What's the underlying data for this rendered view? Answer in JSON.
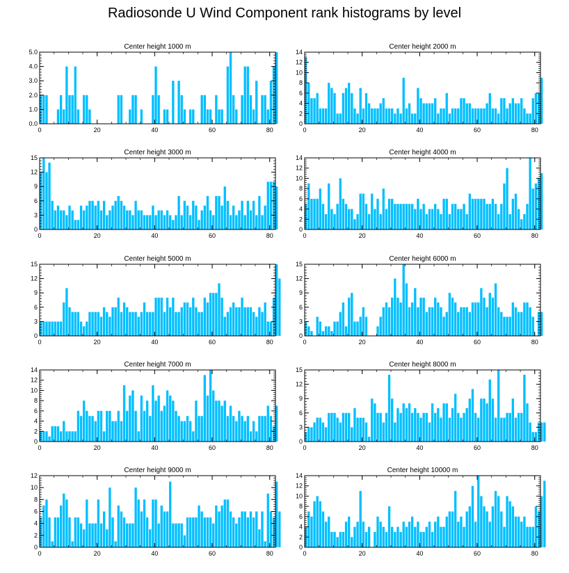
{
  "title": "Radiosonde U Wind Component rank histograms by level",
  "colors": {
    "bar": "#00bfff",
    "bar_edge": "#ffffff",
    "axis": "#000000"
  },
  "chart_data": [
    {
      "type": "bar",
      "title": "Center height 1000 m",
      "xlim": [
        0,
        82
      ],
      "ylim": [
        0,
        5
      ],
      "yticks": [
        0,
        1,
        2,
        3,
        4,
        5
      ],
      "ytick_labels": [
        "0.0",
        "1.0",
        "2.0",
        "3.0",
        "4.0",
        "5.0"
      ],
      "xticks": [
        0,
        20,
        40,
        60,
        80
      ],
      "xtick_labels": [
        "0",
        "20",
        "40",
        "60",
        "80"
      ],
      "values": [
        2,
        2,
        2,
        0,
        0,
        0,
        1,
        2,
        1,
        4,
        2,
        2,
        4,
        1,
        0,
        2,
        2,
        1,
        0,
        0,
        0,
        0,
        0,
        0,
        0,
        0,
        0,
        2,
        2,
        0,
        0,
        1,
        2,
        2,
        0,
        1,
        0,
        0,
        0,
        2,
        4,
        2,
        0,
        1,
        1,
        0,
        3,
        0,
        3,
        2,
        1,
        0,
        1,
        1,
        0,
        0,
        2,
        2,
        1,
        1,
        0,
        2,
        1,
        1,
        0,
        4,
        5,
        2,
        1,
        0,
        2,
        4,
        4,
        2,
        1,
        3,
        0,
        2,
        2,
        1,
        3,
        4,
        5
      ]
    },
    {
      "type": "bar",
      "title": "Center height 2000 m",
      "xlim": [
        0,
        82
      ],
      "ylim": [
        0,
        14
      ],
      "yticks": [
        0,
        2,
        4,
        6,
        8,
        10,
        12,
        14
      ],
      "ytick_labels": [
        "0",
        "2",
        "4",
        "6",
        "8",
        "10",
        "12",
        "14"
      ],
      "xticks": [
        0,
        20,
        40,
        60,
        80
      ],
      "xtick_labels": [
        "0",
        "20",
        "40",
        "60",
        "80"
      ],
      "values": [
        13,
        8,
        5,
        5,
        6,
        3,
        3,
        3,
        8,
        7,
        6,
        2,
        2,
        6,
        7,
        8,
        6,
        3,
        2,
        7,
        3,
        6,
        4,
        3,
        3,
        3,
        4,
        5,
        3,
        3,
        3,
        2,
        3,
        2,
        9,
        3,
        4,
        2,
        2,
        7,
        5,
        4,
        4,
        4,
        4,
        5,
        2,
        3,
        3,
        6,
        2,
        3,
        3,
        3,
        5,
        5,
        4,
        4,
        3,
        3,
        3,
        3,
        3,
        4,
        6,
        3,
        3,
        2,
        5,
        5,
        3,
        4,
        5,
        4,
        4,
        5,
        3,
        2,
        2,
        5,
        6,
        6,
        9
      ]
    },
    {
      "type": "bar",
      "title": "Center height 3000 m",
      "xlim": [
        0,
        82
      ],
      "ylim": [
        0,
        15
      ],
      "yticks": [
        0,
        3,
        6,
        9,
        12,
        15
      ],
      "ytick_labels": [
        "0",
        "3",
        "6",
        "9",
        "12",
        "15"
      ],
      "xticks": [
        0,
        20,
        40,
        60,
        80
      ],
      "xtick_labels": [
        "0",
        "20",
        "40",
        "60",
        "80"
      ],
      "values": [
        12,
        15,
        12,
        14,
        6,
        4,
        5,
        4,
        4,
        3,
        5,
        4,
        2,
        2,
        5,
        4,
        5,
        6,
        6,
        5,
        6,
        4,
        6,
        3,
        4,
        5,
        6,
        7,
        6,
        5,
        4,
        4,
        3,
        6,
        4,
        4,
        3,
        3,
        3,
        5,
        3,
        4,
        4,
        3,
        4,
        3,
        2,
        3,
        7,
        3,
        6,
        5,
        3,
        6,
        5,
        2,
        4,
        5,
        7,
        4,
        3,
        7,
        7,
        5,
        9,
        6,
        3,
        5,
        3,
        4,
        6,
        3,
        6,
        4,
        6,
        3,
        7,
        3,
        5,
        10,
        10,
        10,
        9
      ]
    },
    {
      "type": "bar",
      "title": "Center height 4000 m",
      "xlim": [
        0,
        82
      ],
      "ylim": [
        0,
        14
      ],
      "yticks": [
        0,
        2,
        4,
        6,
        8,
        10,
        12,
        14
      ],
      "ytick_labels": [
        "0",
        "2",
        "4",
        "6",
        "8",
        "10",
        "12",
        "14"
      ],
      "xticks": [
        0,
        20,
        40,
        60,
        80
      ],
      "xtick_labels": [
        "0",
        "20",
        "40",
        "60",
        "80"
      ],
      "values": [
        5,
        9,
        6,
        6,
        6,
        8,
        5,
        3,
        9,
        4,
        3,
        5,
        10,
        6,
        5,
        4,
        4,
        2,
        3,
        7,
        7,
        5,
        3,
        7,
        4,
        6,
        3,
        8,
        4,
        6,
        6,
        5,
        5,
        5,
        5,
        5,
        5,
        5,
        4,
        6,
        4,
        5,
        3,
        4,
        4,
        5,
        4,
        3,
        6,
        6,
        3,
        5,
        5,
        4,
        4,
        5,
        3,
        7,
        6,
        6,
        6,
        6,
        6,
        5,
        5,
        6,
        5,
        3,
        5,
        9,
        12,
        3,
        6,
        7,
        4,
        2,
        3,
        5,
        14,
        8,
        9,
        10,
        11
      ]
    },
    {
      "type": "bar",
      "title": "Center height 5000 m",
      "xlim": [
        0,
        82
      ],
      "ylim": [
        0,
        15
      ],
      "yticks": [
        0,
        3,
        6,
        9,
        12,
        15
      ],
      "ytick_labels": [
        "0",
        "3",
        "6",
        "9",
        "12",
        "15"
      ],
      "xticks": [
        0,
        20,
        40,
        60,
        80
      ],
      "xtick_labels": [
        "0",
        "20",
        "40",
        "60",
        "80"
      ],
      "values": [
        3,
        3,
        3,
        3,
        3,
        3,
        3,
        3,
        7,
        10,
        6,
        5,
        5,
        5,
        3,
        2,
        3,
        5,
        5,
        5,
        5,
        4,
        6,
        5,
        4,
        6,
        6,
        8,
        5,
        7,
        6,
        5,
        5,
        5,
        4,
        5,
        7,
        5,
        5,
        5,
        8,
        8,
        8,
        5,
        8,
        6,
        8,
        5,
        5,
        6,
        7,
        7,
        6,
        8,
        6,
        5,
        5,
        8,
        7,
        9,
        9,
        9,
        11,
        8,
        4,
        5,
        6,
        7,
        6,
        6,
        8,
        6,
        6,
        6,
        5,
        4,
        6,
        5,
        7,
        3,
        3,
        8,
        15,
        12
      ]
    },
    {
      "type": "bar",
      "title": "Center height 6000 m",
      "xlim": [
        0,
        82
      ],
      "ylim": [
        0,
        15
      ],
      "yticks": [
        0,
        3,
        6,
        9,
        12,
        15
      ],
      "ytick_labels": [
        "0",
        "3",
        "6",
        "9",
        "12",
        "15"
      ],
      "xticks": [
        0,
        20,
        40,
        60,
        80
      ],
      "xtick_labels": [
        "0",
        "20",
        "40",
        "60",
        "80"
      ],
      "values": [
        3,
        2,
        1,
        0,
        4,
        3,
        1,
        2,
        2,
        1,
        3,
        3,
        5,
        7,
        2,
        8,
        9,
        3,
        3,
        4,
        6,
        4,
        0,
        0,
        0,
        2,
        4,
        6,
        7,
        6,
        8,
        12,
        8,
        7,
        15,
        11,
        6,
        7,
        10,
        6,
        8,
        8,
        5,
        6,
        6,
        8,
        7,
        6,
        4,
        5,
        9,
        8,
        7,
        5,
        6,
        6,
        6,
        5,
        7,
        7,
        7,
        10,
        8,
        6,
        9,
        8,
        11,
        6,
        5,
        4,
        4,
        4,
        7,
        6,
        5,
        5,
        7,
        7,
        6,
        4,
        0,
        5,
        5
      ]
    },
    {
      "type": "bar",
      "title": "Center height 7000 m",
      "xlim": [
        0,
        82
      ],
      "ylim": [
        0,
        14
      ],
      "yticks": [
        0,
        2,
        4,
        6,
        8,
        10,
        12,
        14
      ],
      "ytick_labels": [
        "0",
        "2",
        "4",
        "6",
        "8",
        "10",
        "12",
        "14"
      ],
      "xticks": [
        0,
        20,
        40,
        60,
        80
      ],
      "xtick_labels": [
        "0",
        "20",
        "40",
        "60",
        "80"
      ],
      "values": [
        2,
        2,
        2,
        1,
        3,
        3,
        3,
        2,
        4,
        2,
        2,
        2,
        2,
        6,
        5,
        8,
        6,
        5,
        5,
        4,
        6,
        6,
        2,
        6,
        6,
        4,
        4,
        6,
        4,
        11,
        6,
        9,
        10,
        6,
        2,
        9,
        6,
        8,
        5,
        11,
        8,
        9,
        6,
        7,
        10,
        9,
        8,
        6,
        5,
        4,
        4,
        5,
        4,
        2,
        8,
        5,
        5,
        13,
        9,
        14,
        10,
        8,
        8,
        7,
        8,
        5,
        7,
        5,
        4,
        6,
        5,
        4,
        5,
        2,
        4,
        2,
        5,
        5,
        5,
        7,
        5,
        3,
        7
      ]
    },
    {
      "type": "bar",
      "title": "Center height 8000 m",
      "xlim": [
        0,
        82
      ],
      "ylim": [
        0,
        15
      ],
      "yticks": [
        0,
        3,
        6,
        9,
        12,
        15
      ],
      "ytick_labels": [
        "0",
        "3",
        "6",
        "9",
        "12",
        "15"
      ],
      "xticks": [
        0,
        20,
        40,
        60,
        80
      ],
      "xtick_labels": [
        "0",
        "20",
        "40",
        "60",
        "80"
      ],
      "values": [
        2,
        3,
        3,
        4,
        5,
        5,
        4,
        3,
        6,
        6,
        6,
        5,
        4,
        6,
        6,
        6,
        3,
        7,
        5,
        5,
        5,
        4,
        1,
        9,
        8,
        6,
        6,
        4,
        6,
        14,
        9,
        4,
        7,
        6,
        8,
        7,
        8,
        6,
        7,
        6,
        5,
        6,
        6,
        4,
        8,
        6,
        7,
        5,
        8,
        8,
        5,
        7,
        10,
        6,
        5,
        6,
        7,
        9,
        11,
        6,
        5,
        9,
        9,
        8,
        13,
        9,
        5,
        15,
        5,
        5,
        6,
        6,
        9,
        5,
        6,
        6,
        14,
        8,
        4,
        2,
        2,
        4,
        4,
        4
      ]
    },
    {
      "type": "bar",
      "title": "Center height 9000 m",
      "xlim": [
        0,
        82
      ],
      "ylim": [
        0,
        12
      ],
      "yticks": [
        0,
        2,
        4,
        6,
        8,
        10,
        12
      ],
      "ytick_labels": [
        "0",
        "2",
        "4",
        "6",
        "8",
        "10",
        "12"
      ],
      "xticks": [
        0,
        20,
        40,
        60,
        80
      ],
      "xtick_labels": [
        "0",
        "20",
        "40",
        "60",
        "80"
      ],
      "values": [
        5,
        7,
        8,
        5,
        1,
        5,
        5,
        7,
        9,
        8,
        5,
        1,
        5,
        5,
        4,
        3,
        8,
        4,
        4,
        4,
        8,
        4,
        6,
        3,
        10,
        5,
        1,
        7,
        6,
        5,
        4,
        4,
        4,
        10,
        8,
        6,
        8,
        5,
        3,
        8,
        8,
        4,
        7,
        6,
        6,
        11,
        4,
        4,
        4,
        4,
        2,
        5,
        5,
        5,
        5,
        7,
        6,
        5,
        5,
        5,
        4,
        7,
        6,
        7,
        8,
        8,
        6,
        5,
        4,
        5,
        6,
        6,
        5,
        6,
        5,
        6,
        3,
        6,
        1,
        9,
        6,
        5,
        11,
        6
      ]
    },
    {
      "type": "bar",
      "title": "Center height 10000 m",
      "xlim": [
        0,
        82
      ],
      "ylim": [
        0,
        14
      ],
      "yticks": [
        0,
        2,
        4,
        6,
        8,
        10,
        12,
        14
      ],
      "ytick_labels": [
        "0",
        "2",
        "4",
        "6",
        "8",
        "10",
        "12",
        "14"
      ],
      "xticks": [
        0,
        20,
        40,
        60,
        80
      ],
      "xtick_labels": [
        "0",
        "20",
        "40",
        "60",
        "80"
      ],
      "values": [
        4,
        7,
        6,
        9,
        10,
        9,
        7,
        5,
        6,
        3,
        3,
        2,
        3,
        3,
        5,
        6,
        2,
        4,
        5,
        11,
        5,
        3,
        4,
        0,
        3,
        6,
        5,
        4,
        3,
        8,
        4,
        3,
        4,
        3,
        5,
        4,
        5,
        6,
        4,
        5,
        3,
        3,
        4,
        5,
        3,
        5,
        6,
        4,
        4,
        6,
        7,
        7,
        11,
        5,
        6,
        4,
        7,
        8,
        12,
        5,
        14,
        10,
        8,
        7,
        5,
        8,
        11,
        10,
        7,
        4,
        10,
        9,
        8,
        6,
        6,
        5,
        6,
        4,
        4,
        4,
        8,
        7,
        10,
        13
      ]
    }
  ]
}
